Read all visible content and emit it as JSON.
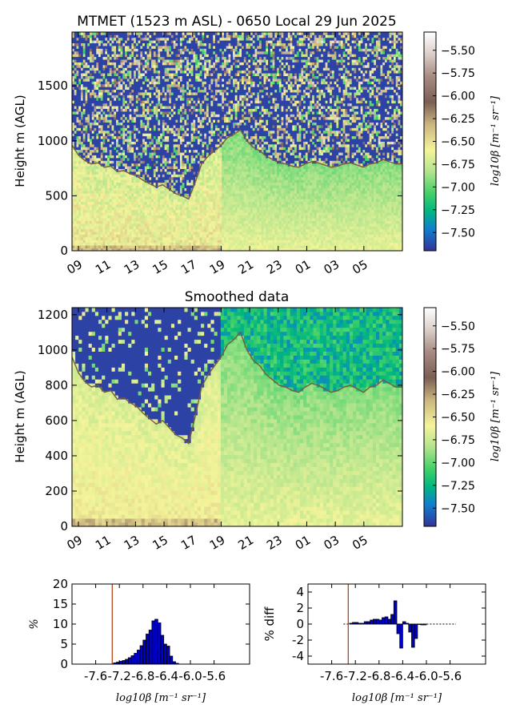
{
  "chart_data": [
    {
      "type": "heatmap",
      "title": "MTMET (1523 m ASL) - 0650 Local 29 Jun 2025",
      "ylabel": "Height m (AGL)",
      "x_ticks": [
        "09",
        "11",
        "13",
        "15",
        "17",
        "19",
        "21",
        "23",
        "01",
        "03",
        "05"
      ],
      "y_ticks": [
        0,
        500,
        1000,
        1500
      ],
      "ylim": [
        0,
        1990
      ],
      "colorbar": {
        "label": "log10β [m⁻¹ sr⁻¹]",
        "ticks": [
          -5.5,
          -5.75,
          -6.0,
          -6.25,
          -6.5,
          -6.75,
          -7.0,
          -7.25,
          -7.5
        ],
        "tick_labels": [
          "−5.50",
          "−5.75",
          "−6.00",
          "−6.25",
          "−6.50",
          "−6.75",
          "−7.00",
          "−7.25",
          "−7.50"
        ],
        "range": [
          -7.7,
          -5.3
        ],
        "colormap": "terrain_r"
      },
      "mixing_height_m": [
        960,
        870,
        820,
        790,
        800,
        760,
        770,
        720,
        730,
        700,
        680,
        640,
        610,
        580,
        600,
        560,
        520,
        500,
        470,
        620,
        790,
        860,
        910,
        960,
        1030,
        1060,
        1100,
        1000,
        940,
        910,
        860,
        830,
        800,
        790,
        770,
        760,
        790,
        810,
        800,
        780,
        760,
        770,
        790,
        800,
        780,
        760,
        790,
        800,
        830,
        810,
        790,
        790
      ]
    },
    {
      "type": "heatmap",
      "title": "Smoothed data",
      "ylabel": "Height m (AGL)",
      "x_ticks": [
        "09",
        "11",
        "13",
        "15",
        "17",
        "19",
        "21",
        "23",
        "01",
        "03",
        "05"
      ],
      "y_ticks": [
        0,
        200,
        400,
        600,
        800,
        1000,
        1200
      ],
      "ylim": [
        0,
        1240
      ],
      "colorbar": {
        "label": "log10β [m⁻¹ sr⁻¹]",
        "ticks": [
          -5.5,
          -5.75,
          -6.0,
          -6.25,
          -6.5,
          -6.75,
          -7.0,
          -7.25,
          -7.5
        ],
        "tick_labels": [
          "−5.50",
          "−5.75",
          "−6.00",
          "−6.25",
          "−6.50",
          "−6.75",
          "−7.00",
          "−7.25",
          "−7.50"
        ],
        "range": [
          -7.7,
          -5.3
        ],
        "colormap": "terrain_r"
      },
      "mixing_height_m": [
        960,
        870,
        820,
        790,
        800,
        760,
        770,
        720,
        730,
        700,
        680,
        640,
        610,
        580,
        600,
        560,
        520,
        500,
        470,
        620,
        790,
        860,
        910,
        960,
        1030,
        1060,
        1100,
        1000,
        940,
        910,
        860,
        830,
        800,
        790,
        770,
        760,
        790,
        810,
        800,
        780,
        760,
        770,
        790,
        800,
        780,
        760,
        790,
        800,
        830,
        810,
        790,
        790
      ]
    },
    {
      "type": "bar",
      "title": "",
      "ylabel": "%",
      "xlabel": "log10β [m⁻¹ sr⁻¹]",
      "x_ticks": [
        -7.6,
        -7.2,
        -6.8,
        -6.4,
        -6.0,
        -5.6
      ],
      "x_tick_labels": [
        "-7.6",
        "-7.2",
        "-6.8",
        "-6.4",
        "-6.0",
        "-5.6"
      ],
      "xlim": [
        -8.0,
        -5.0
      ],
      "ylim": [
        0,
        20
      ],
      "y_ticks": [
        0,
        5,
        10,
        15,
        20
      ],
      "bin_width": 0.05,
      "bin_start": -7.3,
      "values": [
        0.3,
        0.5,
        0.7,
        0.9,
        1.2,
        1.6,
        2.1,
        2.7,
        3.5,
        4.6,
        6.0,
        7.5,
        8.5,
        10.8,
        11.2,
        10.3,
        7.2,
        5.0,
        4.5,
        2.0,
        0.6,
        0.2
      ],
      "reference_line_x": -7.32
    },
    {
      "type": "bar",
      "title": "",
      "ylabel": "% diff",
      "xlabel": "log10β [m⁻¹ sr⁻¹]",
      "x_ticks": [
        -7.6,
        -7.2,
        -6.8,
        -6.4,
        -6.0,
        -5.6
      ],
      "x_tick_labels": [
        "-7.6",
        "-7.2",
        "-6.8",
        "-6.4",
        "-6.0",
        "-5.6"
      ],
      "xlim": [
        -8.0,
        -5.0
      ],
      "ylim": [
        -5,
        5
      ],
      "y_ticks": [
        -4,
        -2,
        0,
        2,
        4
      ],
      "bin_width": 0.05,
      "bin_start": -7.3,
      "values": [
        0.1,
        0.2,
        0.2,
        0.1,
        0.1,
        0.3,
        0.3,
        0.5,
        0.6,
        0.6,
        0.5,
        0.8,
        0.9,
        0.6,
        1.2,
        2.9,
        -1.2,
        -3.0,
        0.3,
        0.1,
        -1.0,
        -2.9,
        -1.8,
        0.0,
        -0.1,
        -0.1
      ],
      "zero_line_xlim": [
        -7.4,
        -5.5
      ],
      "reference_line_x": -7.32
    }
  ]
}
